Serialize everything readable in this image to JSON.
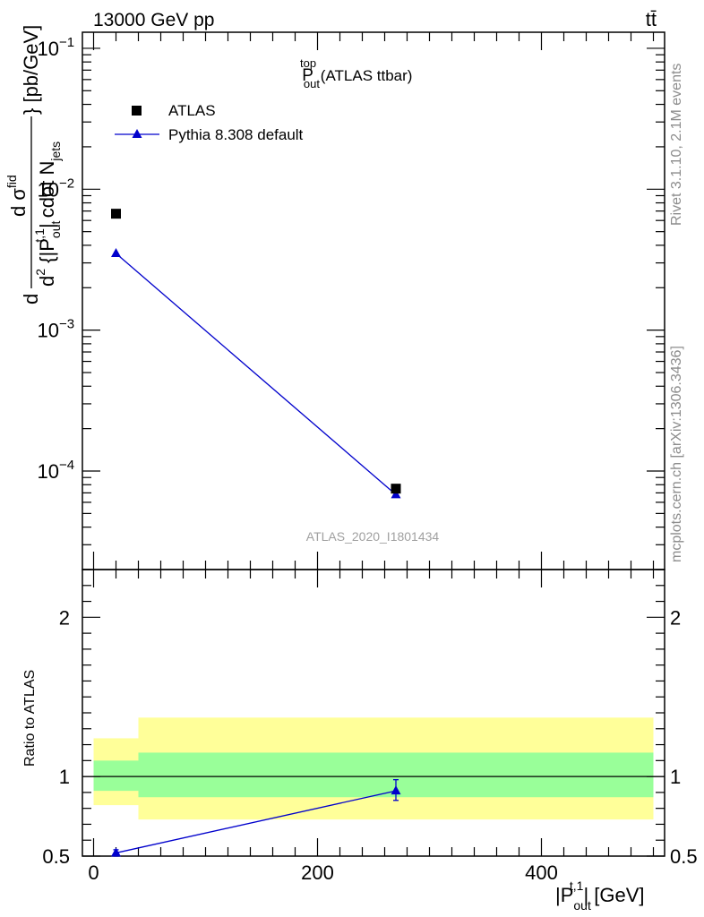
{
  "header": {
    "energy_label": "13000 GeV pp",
    "process_label": "tt̄"
  },
  "side_labels": {
    "rivet": "Rivet 3.1.10,  2.1M events",
    "mcplots": "mcplots.cern.ch [arXiv:1306.3436]"
  },
  "chart_data": [
    {
      "type": "scatter",
      "title_main": "P",
      "title_sup": "top",
      "title_sub": "out",
      "title_rest": " (ATLAS ttbar)",
      "ylabel": "d²σ / d² {|P_out^t,1| cdot N_jets} [pb/GeV]",
      "ylabel_parts": {
        "d1": "d",
        "num": "d σ",
        "num_sup": "fid",
        "den_a": "d",
        "den_a_sup": "2",
        "den_b": " {|P",
        "den_b_sup": "t,1",
        "den_b_sub": "out",
        "den_c": "| cdot N",
        "den_c_sub": "jets",
        "unit": "} [pb/GeV]"
      },
      "yscale": "log",
      "ylim": [
        2e-05,
        0.13
      ],
      "xlim": [
        -10,
        510
      ],
      "y_ticks": [
        {
          "value": 0.1,
          "base": "10",
          "exp": "−1"
        },
        {
          "value": 0.01,
          "base": "10",
          "exp": "−2"
        },
        {
          "value": 0.001,
          "base": "10",
          "exp": "−3"
        },
        {
          "value": 0.0001,
          "base": "10",
          "exp": "−4"
        }
      ],
      "legend_position": "top-left",
      "series": [
        {
          "name": "ATLAS",
          "marker": "square",
          "color": "#000000",
          "x": [
            20,
            270
          ],
          "y": [
            0.0067,
            7.5e-05
          ]
        },
        {
          "name": "Pythia 8.308 default",
          "marker": "triangle",
          "color": "#0000cc",
          "x": [
            20,
            270
          ],
          "y": [
            0.0035,
            6.8e-05
          ]
        }
      ],
      "watermark": "ATLAS_2020_I1801434"
    },
    {
      "type": "line",
      "ylabel": "Ratio to ATLAS",
      "xlabel_main": "|P",
      "xlabel_sup": "t,1",
      "xlabel_sub": "out",
      "xlabel_rest": "| [GeV]",
      "xlim": [
        -10,
        510
      ],
      "ylim": [
        0.5,
        2.3
      ],
      "x_ticks": [
        "0",
        "200",
        "400"
      ],
      "x_tick_values": [
        0,
        200,
        400
      ],
      "y_ticks": [
        "0.5",
        "1",
        "2"
      ],
      "y_tick_values": [
        0.5,
        1,
        2
      ],
      "reference_line": 1,
      "bands": [
        {
          "x": [
            0,
            40
          ],
          "inner": [
            0.91,
            1.1
          ],
          "outer": [
            0.82,
            1.24
          ]
        },
        {
          "x": [
            40,
            500
          ],
          "inner": [
            0.87,
            1.15
          ],
          "outer": [
            0.73,
            1.37
          ]
        }
      ],
      "series": [
        {
          "name": "Pythia 8.308 default",
          "color": "#0000cc",
          "x": [
            20,
            270
          ],
          "y": [
            0.52,
            0.91
          ],
          "yerr_low": [
            0.02,
            0.06
          ],
          "yerr_high": [
            0.02,
            0.07
          ]
        }
      ]
    }
  ]
}
